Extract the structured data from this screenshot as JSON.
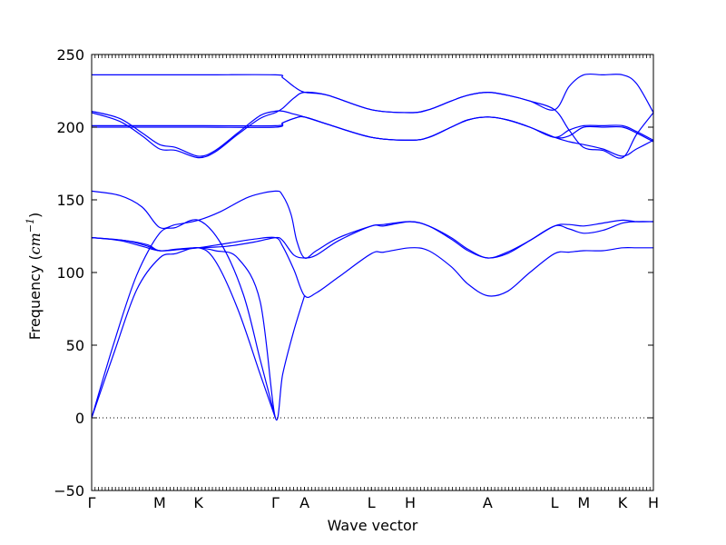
{
  "chart_data": {
    "type": "line",
    "title": "",
    "xlabel": "Wave vector",
    "ylabel_prefix": "Frequency (",
    "ylabel_unit_base": "cm",
    "ylabel_unit_exp": "−1",
    "ylabel_suffix": ")",
    "ylim": [
      -50,
      250
    ],
    "yticks": [
      -50,
      0,
      50,
      100,
      150,
      200,
      250
    ],
    "xlim": [
      0,
      100
    ],
    "grid": false,
    "reference_line": {
      "y": 0,
      "style": "dotted"
    },
    "x_tick_labels": [
      {
        "label": "Γ",
        "x": 0
      },
      {
        "label": "M",
        "x": 12.1
      },
      {
        "label": "K",
        "x": 19.0
      },
      {
        "label": "Γ",
        "x": 32.7
      },
      {
        "label": "A",
        "x": 37.9
      },
      {
        "label": "L",
        "x": 49.8
      },
      {
        "label": "H",
        "x": 56.7
      },
      {
        "label": "A",
        "x": 70.5
      },
      {
        "label": "L",
        "x": 82.4
      },
      {
        "label": "M",
        "x": 87.6
      },
      {
        "label": "K",
        "x": 94.5
      },
      {
        "label": "H",
        "x": 100
      }
    ],
    "line_color": "#0000ff",
    "series": [
      {
        "points": [
          [
            0,
            0
          ],
          [
            4,
            45
          ],
          [
            8,
            88
          ],
          [
            12.1,
            110
          ],
          [
            15,
            113
          ],
          [
            19,
            117
          ],
          [
            22,
            108
          ],
          [
            26,
            75
          ],
          [
            30,
            30
          ],
          [
            32.7,
            0
          ]
        ]
      },
      {
        "points": [
          [
            0,
            0
          ],
          [
            4,
            52
          ],
          [
            8,
            98
          ],
          [
            12.1,
            127
          ],
          [
            15,
            131
          ],
          [
            19,
            136
          ],
          [
            23,
            120
          ],
          [
            27,
            85
          ],
          [
            30,
            40
          ],
          [
            32.7,
            0
          ]
        ]
      },
      {
        "points": [
          [
            0,
            124
          ],
          [
            6,
            122
          ],
          [
            10,
            119
          ],
          [
            12.1,
            115
          ],
          [
            16,
            116
          ],
          [
            19,
            117
          ],
          [
            24,
            120
          ],
          [
            29,
            123
          ],
          [
            32.7,
            124
          ],
          [
            34,
            118
          ],
          [
            36,
            102
          ],
          [
            37.9,
            84
          ],
          [
            40,
            86
          ],
          [
            44,
            97
          ],
          [
            49.8,
            113
          ],
          [
            52,
            114
          ],
          [
            56.7,
            117
          ],
          [
            60,
            115
          ],
          [
            64,
            104
          ],
          [
            67,
            92
          ],
          [
            70.5,
            84
          ],
          [
            74,
            87
          ],
          [
            78,
            100
          ],
          [
            82.4,
            113
          ],
          [
            85,
            114
          ],
          [
            87.6,
            115
          ],
          [
            91,
            115
          ],
          [
            94.5,
            117
          ],
          [
            97,
            117
          ],
          [
            100,
            117
          ]
        ]
      },
      {
        "points": [
          [
            0,
            124
          ],
          [
            6,
            122
          ],
          [
            10,
            118
          ],
          [
            12.1,
            115
          ],
          [
            16,
            116
          ],
          [
            19,
            117
          ],
          [
            24,
            118
          ],
          [
            29,
            121
          ],
          [
            32.7,
            124
          ],
          [
            34,
            122
          ],
          [
            36,
            112
          ],
          [
            37.9,
            110
          ],
          [
            40,
            112
          ],
          [
            44,
            122
          ],
          [
            49.8,
            132
          ],
          [
            52,
            132
          ],
          [
            56.7,
            135
          ],
          [
            60,
            132
          ],
          [
            64,
            123
          ],
          [
            67,
            115
          ],
          [
            70.5,
            110
          ],
          [
            74,
            113
          ],
          [
            78,
            122
          ],
          [
            82.4,
            132
          ],
          [
            85,
            130
          ],
          [
            87.6,
            127
          ],
          [
            91,
            129
          ],
          [
            94.5,
            134
          ],
          [
            97,
            135
          ],
          [
            100,
            135
          ]
        ]
      },
      {
        "points": [
          [
            0,
            156
          ],
          [
            5,
            153
          ],
          [
            9,
            145
          ],
          [
            12.1,
            131
          ],
          [
            15,
            133
          ],
          [
            19,
            136
          ],
          [
            23,
            142
          ],
          [
            28,
            152
          ],
          [
            32.7,
            156
          ],
          [
            34,
            153
          ],
          [
            35.5,
            140
          ],
          [
            36.5,
            122
          ],
          [
            37.9,
            110
          ],
          [
            40,
            115
          ],
          [
            44,
            124
          ],
          [
            49.8,
            132
          ],
          [
            52,
            133
          ],
          [
            56.7,
            135
          ],
          [
            60,
            132
          ],
          [
            64,
            124
          ],
          [
            67,
            116
          ],
          [
            70.5,
            110
          ],
          [
            74,
            114
          ],
          [
            78,
            122
          ],
          [
            82.4,
            132
          ],
          [
            85,
            133
          ],
          [
            87.6,
            132
          ],
          [
            91,
            134
          ],
          [
            94.5,
            136
          ],
          [
            97,
            135
          ],
          [
            100,
            135
          ]
        ]
      },
      {
        "points": [
          [
            0,
            124
          ],
          [
            5,
            122
          ],
          [
            9,
            118
          ],
          [
            12.1,
            115
          ],
          [
            15,
            116
          ],
          [
            19,
            117
          ],
          [
            22,
            115
          ],
          [
            26,
            110
          ],
          [
            30,
            80
          ],
          [
            32.7,
            0
          ],
          [
            34,
            30
          ],
          [
            36,
            60
          ],
          [
            37.9,
            84
          ]
        ]
      },
      {
        "points": [
          [
            0,
            236
          ],
          [
            10,
            236
          ],
          [
            20,
            236
          ],
          [
            32.7,
            236
          ],
          [
            34,
            234
          ],
          [
            36,
            228
          ],
          [
            37.9,
            224
          ],
          [
            42,
            222
          ],
          [
            49.8,
            212
          ],
          [
            56.7,
            210
          ],
          [
            60,
            212
          ],
          [
            64,
            218
          ],
          [
            67,
            222
          ],
          [
            70.5,
            224
          ],
          [
            74,
            222
          ],
          [
            78,
            218
          ],
          [
            82.4,
            212
          ],
          [
            85,
            228
          ],
          [
            87.6,
            236
          ],
          [
            91,
            236
          ],
          [
            94.5,
            236
          ],
          [
            97,
            230
          ],
          [
            100,
            210
          ]
        ]
      },
      {
        "points": [
          [
            0,
            211
          ],
          [
            5,
            206
          ],
          [
            9,
            196
          ],
          [
            12.1,
            188
          ],
          [
            15,
            186
          ],
          [
            19,
            180
          ],
          [
            22,
            184
          ],
          [
            26,
            196
          ],
          [
            30,
            208
          ],
          [
            32.7,
            211
          ],
          [
            34,
            211
          ],
          [
            36,
            209
          ],
          [
            37.9,
            207
          ],
          [
            42,
            202
          ],
          [
            49.8,
            193
          ],
          [
            56.7,
            191
          ],
          [
            60,
            193
          ],
          [
            64,
            200
          ],
          [
            67,
            205
          ],
          [
            70.5,
            207
          ],
          [
            74,
            205
          ],
          [
            78,
            200
          ],
          [
            82.4,
            193
          ],
          [
            85,
            190
          ],
          [
            87.6,
            188
          ],
          [
            91,
            185
          ],
          [
            94.5,
            180
          ],
          [
            97,
            185
          ],
          [
            100,
            191
          ]
        ]
      },
      {
        "points": [
          [
            0,
            210
          ],
          [
            5,
            204
          ],
          [
            9,
            194
          ],
          [
            12.1,
            185
          ],
          [
            15,
            184
          ],
          [
            19,
            179
          ],
          [
            22,
            183
          ],
          [
            26,
            195
          ],
          [
            30,
            206
          ],
          [
            32.7,
            210
          ],
          [
            34,
            213
          ],
          [
            36,
            220
          ],
          [
            37.9,
            224
          ],
          [
            42,
            222
          ],
          [
            49.8,
            212
          ],
          [
            56.7,
            210
          ],
          [
            60,
            212
          ],
          [
            64,
            218
          ],
          [
            67,
            222
          ],
          [
            70.5,
            224
          ],
          [
            74,
            222
          ],
          [
            78,
            218
          ],
          [
            82.4,
            212
          ],
          [
            85,
            198
          ],
          [
            87.6,
            186
          ],
          [
            91,
            184
          ],
          [
            94.5,
            179
          ],
          [
            97,
            195
          ],
          [
            100,
            210
          ]
        ]
      },
      {
        "points": [
          [
            0,
            201
          ],
          [
            10,
            201
          ],
          [
            20,
            201
          ],
          [
            32.7,
            201
          ],
          [
            34,
            203
          ],
          [
            36,
            206
          ],
          [
            37.9,
            207
          ],
          [
            42,
            202
          ],
          [
            49.8,
            193
          ],
          [
            56.7,
            191
          ],
          [
            60,
            193
          ],
          [
            64,
            200
          ],
          [
            67,
            205
          ],
          [
            70.5,
            207
          ],
          [
            74,
            205
          ],
          [
            78,
            200
          ],
          [
            82.4,
            193
          ],
          [
            85,
            198
          ],
          [
            87.6,
            201
          ],
          [
            91,
            201
          ],
          [
            94.5,
            201
          ],
          [
            97,
            197
          ],
          [
            100,
            191
          ]
        ]
      },
      {
        "points": [
          [
            0,
            200
          ],
          [
            10,
            200
          ],
          [
            20,
            200
          ],
          [
            32.7,
            200
          ],
          [
            34,
            203
          ],
          [
            36,
            206
          ],
          [
            37.9,
            207
          ],
          [
            42,
            202
          ],
          [
            49.8,
            193
          ],
          [
            56.7,
            191
          ],
          [
            60,
            193
          ],
          [
            64,
            200
          ],
          [
            67,
            205
          ],
          [
            70.5,
            207
          ],
          [
            74,
            205
          ],
          [
            78,
            200
          ],
          [
            82.4,
            193
          ],
          [
            85,
            194
          ],
          [
            87.6,
            200
          ],
          [
            91,
            200
          ],
          [
            94.5,
            200
          ],
          [
            97,
            196
          ],
          [
            100,
            190
          ]
        ]
      }
    ]
  }
}
